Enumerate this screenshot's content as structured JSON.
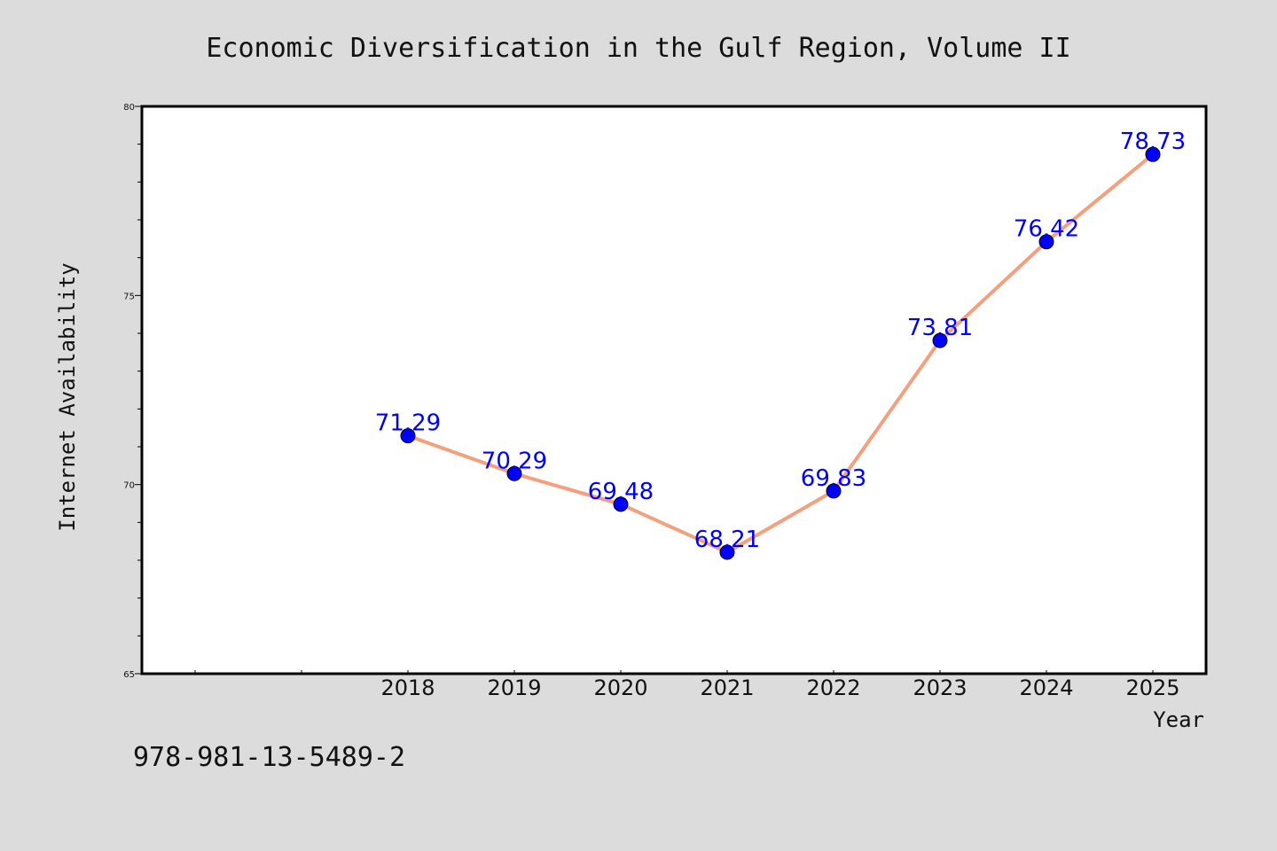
{
  "chart_data": {
    "type": "line",
    "title": "Economic Diversification in the Gulf Region, Volume II",
    "xlabel": "Year",
    "ylabel": "Internet Availability",
    "categories": [
      "2018",
      "2019",
      "2020",
      "2021",
      "2022",
      "2023",
      "2024",
      "2025"
    ],
    "series": [
      {
        "values": [
          71.29,
          70.29,
          69.48,
          68.21,
          69.83,
          73.81,
          76.42,
          78.73
        ],
        "data_labels": [
          "71.29",
          "70.29",
          "69.48",
          "68.21",
          "69.83",
          "73.81",
          "76.42",
          "78.73"
        ],
        "line_color": "#f4a07e",
        "marker_color": "#0000ff"
      }
    ],
    "ylim": [
      65,
      80
    ],
    "yticks": [
      "65",
      "70",
      "75",
      "80"
    ],
    "grid": false,
    "legend": "none"
  },
  "footer": {
    "isbn": "978-981-13-5489-2"
  },
  "colors": {
    "background": "#dcdcdc",
    "plot_background": "#ffffff",
    "data_label": "#0000ff"
  }
}
